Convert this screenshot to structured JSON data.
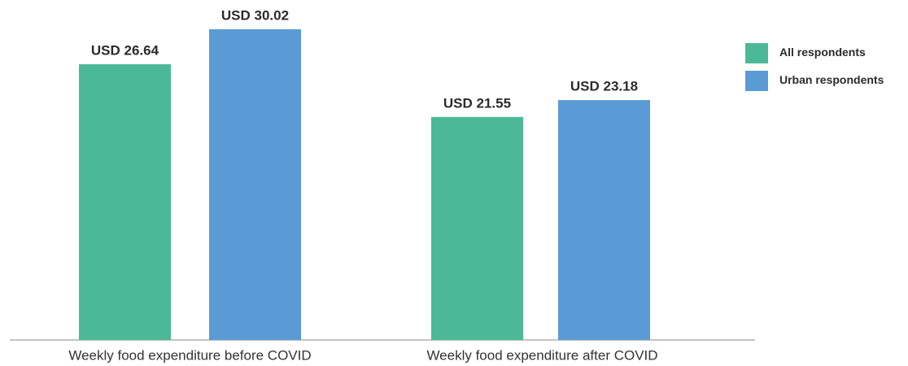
{
  "chart_data": {
    "type": "bar",
    "categories": [
      "Weekly food expenditure before COVID",
      "Weekly food expenditure after COVID"
    ],
    "series": [
      {
        "name": "All respondents",
        "color": "#4cb996",
        "values": [
          26.64,
          21.55
        ],
        "value_labels": [
          "USD 26.64",
          "USD 21.55"
        ]
      },
      {
        "name": "Urban respondents",
        "color": "#5b9bd5",
        "values": [
          30.02,
          23.18
        ],
        "value_labels": [
          "USD 30.02",
          "USD 23.18"
        ]
      }
    ],
    "legend": "top-right"
  }
}
